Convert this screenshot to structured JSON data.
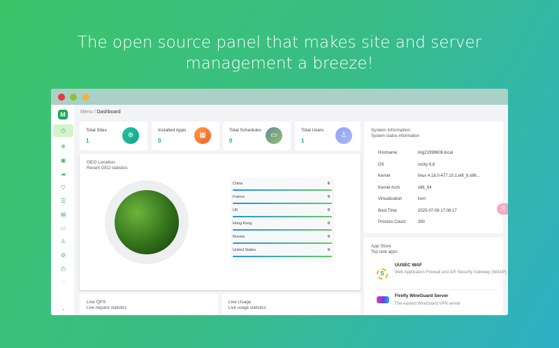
{
  "headline": {
    "line1": "The open source panel that makes site and server",
    "line2": "management a breeze!"
  },
  "window": {
    "dots": [
      "#e8393c",
      "#8cc23a",
      "#f2b04a"
    ]
  },
  "sidebar": {
    "logo": "M",
    "items": [
      {
        "icon": "dashboard-icon",
        "glyph": "◷",
        "active": true
      },
      {
        "icon": "globe-icon",
        "glyph": "⊕"
      },
      {
        "icon": "store-icon",
        "glyph": "▣"
      },
      {
        "icon": "cloud-icon",
        "glyph": "☁"
      },
      {
        "icon": "shield-icon",
        "glyph": "⛉"
      },
      {
        "icon": "database-icon",
        "glyph": "☰"
      },
      {
        "icon": "file-icon",
        "glyph": "▤"
      },
      {
        "icon": "terminal-icon",
        "glyph": "▭"
      },
      {
        "icon": "user-icon",
        "glyph": "♙"
      },
      {
        "icon": "gear-icon",
        "glyph": "⚙"
      },
      {
        "icon": "clock-icon",
        "glyph": "◴"
      },
      {
        "icon": "logout-icon",
        "glyph": "◌"
      }
    ],
    "collapse": "›"
  },
  "breadcrumb": {
    "root": "Menu",
    "sep": "/",
    "current": "Dashboard"
  },
  "stats": [
    {
      "label": "Total Sites",
      "value": "1",
      "icon": "globe-icon",
      "glyph": "⊕",
      "color": "linear-gradient(135deg,#27c2a0,#12a88a)"
    },
    {
      "label": "Installed Apps",
      "value": "0",
      "icon": "apps-icon",
      "glyph": "▦",
      "color": "linear-gradient(135deg,#ff9a3c,#f4612e)"
    },
    {
      "label": "Total Schedules",
      "value": "0",
      "icon": "calendar-icon",
      "glyph": "▭",
      "color": "linear-gradient(135deg,#6c8a9a,#8cc26a)"
    },
    {
      "label": "Total Users",
      "value": "1",
      "icon": "user-icon",
      "glyph": "♙",
      "color": "linear-gradient(135deg,#8ea6f4,#a9b4f7)"
    }
  ],
  "geo": {
    "title": "GEO Location",
    "subtitle": "Recent GEO statistics",
    "countries": [
      {
        "name": "China",
        "value": "6"
      },
      {
        "name": "France",
        "value": "0"
      },
      {
        "name": "UK",
        "value": "0"
      },
      {
        "name": "Hong Kong",
        "value": "0"
      },
      {
        "name": "Russia",
        "value": "0"
      },
      {
        "name": "United States",
        "value": "0"
      }
    ]
  },
  "sysinfo": {
    "title": "System Information",
    "subtitle": "System status information",
    "rows": [
      {
        "k": "Hostname",
        "v": "ling21998606.local"
      },
      {
        "k": "OS",
        "v": "rocky 8.8"
      },
      {
        "k": "Kernel",
        "v": "linux 4.18.0-477.10.1.el8_8.x86..."
      },
      {
        "k": "Kernel Arch",
        "v": "x86_64"
      },
      {
        "k": "Virtualization",
        "v": "kvm"
      },
      {
        "k": "Boot Time",
        "v": "2025-07-08 17:08:17"
      },
      {
        "k": "Process Count",
        "v": "390"
      }
    ]
  },
  "appstore": {
    "title": "App Store",
    "subtitle": "Top rank apps",
    "apps": [
      {
        "name": "UUSEC WAF",
        "desc": "Web Application Firewall and API Security Gateway (WAAP)",
        "icon": "waf-logo-icon"
      },
      {
        "name": "Firefly WireGuard Server",
        "desc": "The easiest WireGuard VPN server",
        "icon": "firefly-logo-icon"
      }
    ]
  },
  "live_qps": {
    "title": "Live QPS",
    "subtitle": "Live request statistics"
  },
  "live_usage": {
    "title": "Live Usage",
    "subtitle": "Live usage statistics"
  },
  "float_button": {
    "icon": "translate-icon",
    "glyph": "文"
  }
}
